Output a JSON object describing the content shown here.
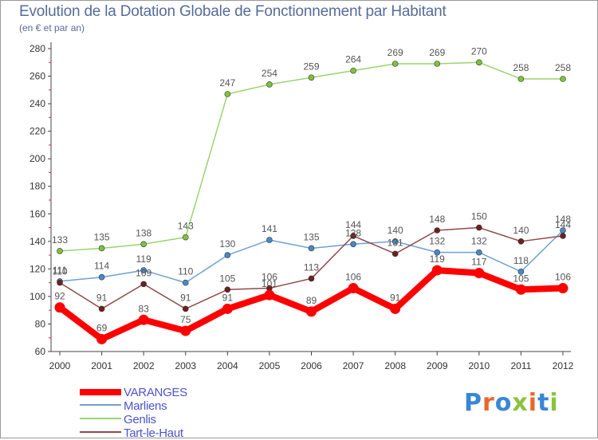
{
  "title": "Evolution de la Dotation Globale de Fonctionnement par Habitant",
  "subtitle": "(en € et par an)",
  "logo": {
    "text": "Proxiti",
    "letter_colors": [
      "#3a86d6",
      "#e8692a",
      "#3a86d6",
      "#8ac33c",
      "#e8692a",
      "#3a86d6",
      "#8ac33c"
    ]
  },
  "chart_data": {
    "type": "line",
    "title": "Evolution de la Dotation Globale de Fonctionnement par Habitant",
    "subtitle": "(en € et par an)",
    "categories": [
      "2000",
      "2001",
      "2002",
      "2003",
      "2004",
      "2005",
      "2006",
      "2007",
      "2008",
      "2009",
      "2010",
      "2011",
      "2012"
    ],
    "ylim": [
      60,
      280
    ],
    "yticks": [
      60,
      80,
      100,
      120,
      140,
      160,
      180,
      200,
      220,
      240,
      260,
      280
    ],
    "grid": false,
    "legend_position": "bottom-left",
    "series": [
      {
        "name": "VARANGES",
        "color": "#ff0000",
        "point_color": "#ff0000",
        "label_color": "#555555",
        "emphasis": "thick",
        "values": [
          92,
          69,
          83,
          75,
          91,
          101,
          89,
          106,
          91,
          119,
          117,
          105,
          106
        ]
      },
      {
        "name": "Marliens",
        "color": "#6fa1cf",
        "point_color": "#4a88c8",
        "label_color": "#555555",
        "emphasis": "normal",
        "values": [
          111,
          114,
          119,
          110,
          130,
          141,
          135,
          138,
          140,
          132,
          132,
          118,
          148
        ]
      },
      {
        "name": "Genlis",
        "color": "#9bd46f",
        "point_color": "#7ec23f",
        "label_color": "#555555",
        "emphasis": "normal",
        "values": [
          133,
          135,
          138,
          143,
          247,
          254,
          259,
          264,
          269,
          269,
          270,
          258,
          258
        ]
      },
      {
        "name": "Tart-le-Haut",
        "color": "#8f4a4a",
        "point_color": "#6e1f1f",
        "label_color": "#555555",
        "emphasis": "normal",
        "values": [
          110,
          91,
          109,
          91,
          105,
          106,
          113,
          144,
          131,
          148,
          150,
          140,
          144
        ]
      }
    ]
  },
  "legend": {
    "items": [
      {
        "label": "VARANGES",
        "color": "#ff0000"
      },
      {
        "label": "Marliens",
        "color": "#6fa1cf"
      },
      {
        "label": "Genlis",
        "color": "#9bd46f"
      },
      {
        "label": "Tart-le-Haut",
        "color": "#8f4a4a"
      }
    ]
  }
}
